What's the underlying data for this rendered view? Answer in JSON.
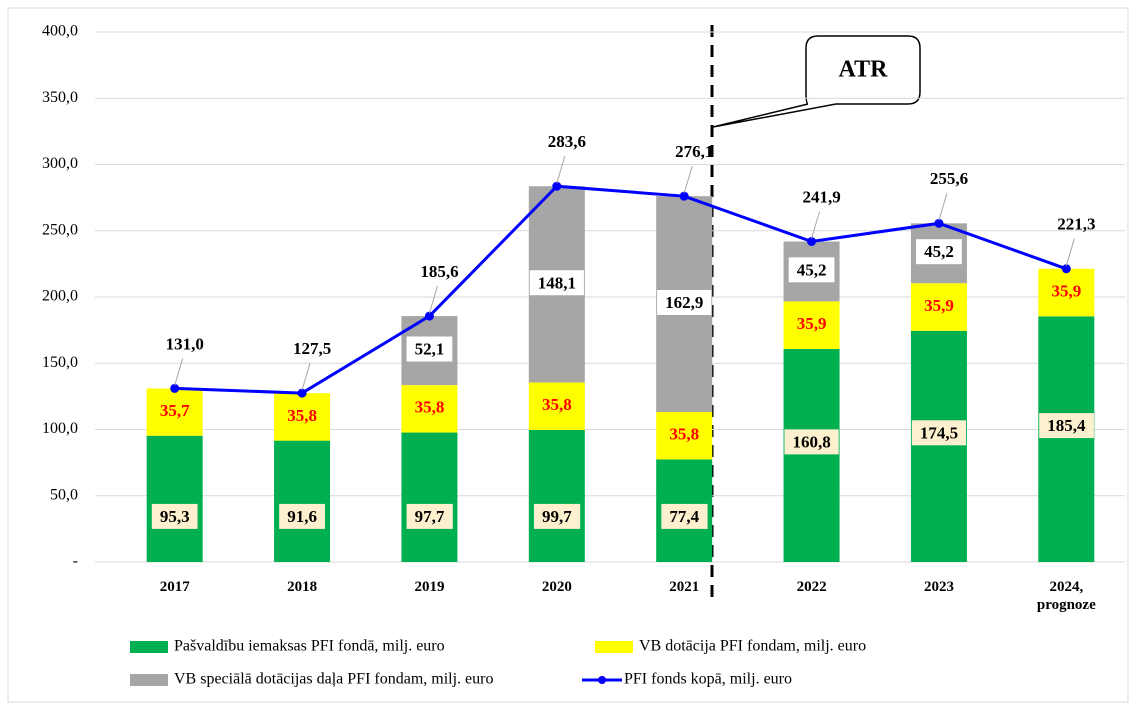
{
  "chart_data": {
    "type": "stacked-bar-line",
    "categories": [
      "2017",
      "2018",
      "2019",
      "2020",
      "2021",
      "2022",
      "2023",
      "2024, prognoze"
    ],
    "series": [
      {
        "name": "Pašvaldību iemaksas PFI fondā, milj. euro",
        "color": "#00b050",
        "kind": "bar",
        "values": [
          95.3,
          91.6,
          97.7,
          99.7,
          77.4,
          160.8,
          174.5,
          185.4
        ],
        "value_labels": [
          "95,3",
          "91,6",
          "97,7",
          "99,7",
          "77,4",
          "160,8",
          "174,5",
          "185,4"
        ]
      },
      {
        "name": "VB dotācija PFI fondam, milj. euro",
        "color": "#ffff00",
        "kind": "bar",
        "values": [
          35.7,
          35.8,
          35.8,
          35.8,
          35.8,
          35.9,
          35.9,
          35.9
        ],
        "value_labels": [
          "35,7",
          "35,8",
          "35,8",
          "35,8",
          "35,8",
          "35,9",
          "35,9",
          "35,9"
        ]
      },
      {
        "name": "VB speciālā dotācijas daļa PFI fondam, milj. euro",
        "color": "#a6a6a6",
        "kind": "bar",
        "values": [
          null,
          null,
          52.1,
          148.1,
          162.9,
          45.2,
          45.2,
          null
        ],
        "value_labels": [
          null,
          null,
          "52,1",
          "148,1",
          "162,9",
          "45,2",
          "45,2",
          null
        ]
      },
      {
        "name": "PFI fonds kopā, milj. euro",
        "color": "#0000ff",
        "kind": "line",
        "values": [
          131.0,
          127.5,
          185.6,
          283.6,
          276.1,
          241.9,
          255.6,
          221.3
        ],
        "value_labels": [
          "131,0",
          "127,5",
          "185,6",
          "283,6",
          "276,1",
          "241,9",
          "255,6",
          "221,3"
        ]
      }
    ],
    "ylim": [
      0,
      400
    ],
    "yticks": [
      {
        "value": 0,
        "label": "-"
      },
      {
        "value": 50,
        "label": "50,0"
      },
      {
        "value": 100,
        "label": "100,0"
      },
      {
        "value": 150,
        "label": "150,0"
      },
      {
        "value": 200,
        "label": "200,0"
      },
      {
        "value": 250,
        "label": "250,0"
      },
      {
        "value": 300,
        "label": "300,0"
      },
      {
        "value": 350,
        "label": "350,0"
      },
      {
        "value": 400,
        "label": "400,0"
      }
    ],
    "grid": true,
    "annotations": [
      "ATR"
    ]
  }
}
